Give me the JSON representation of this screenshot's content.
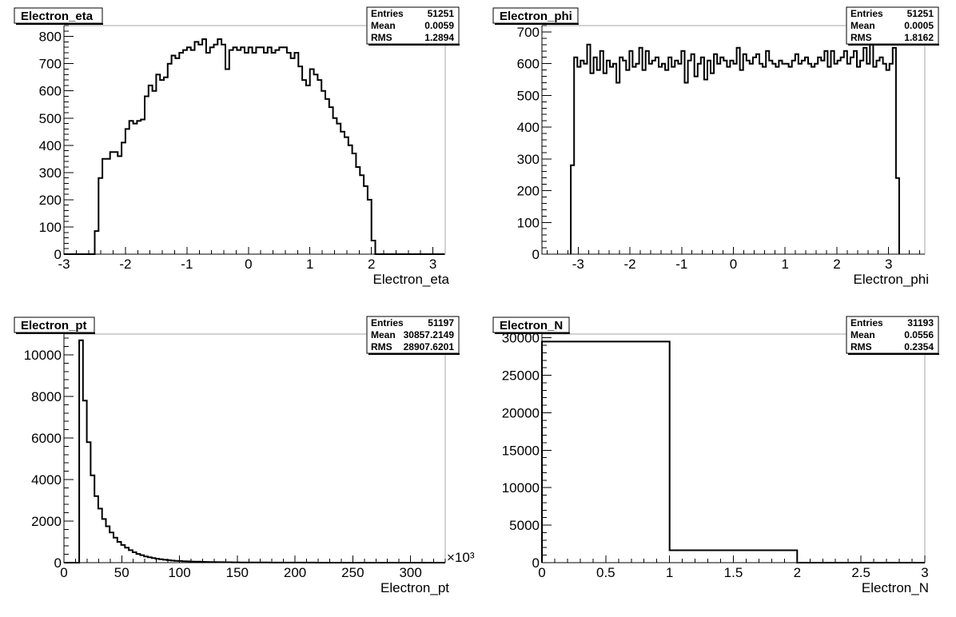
{
  "chart_data": [
    {
      "type": "histogram",
      "title": "Electron_eta",
      "xlabel": "Electron_eta",
      "ylabel": "",
      "xlim": [
        -3,
        3.2
      ],
      "ylim": [
        0,
        840
      ],
      "xticks": [
        -3,
        -2,
        -1,
        0,
        1,
        2,
        3
      ],
      "xtick_labels": [
        "-3",
        "-2",
        "-1",
        "0",
        "1",
        "2",
        "3"
      ],
      "yticks": [
        0,
        100,
        200,
        300,
        400,
        500,
        600,
        700,
        800
      ],
      "ytick_labels": [
        "0",
        "100",
        "200",
        "300",
        "400",
        "500",
        "600",
        "700",
        "800"
      ],
      "stats": {
        "Entries": "51251",
        "Mean": "0.0059",
        "RMS": "1.2894"
      },
      "bin_edges_start": -3,
      "bin_width": 0.0625,
      "values": [
        0,
        0,
        0,
        0,
        0,
        0,
        0,
        0,
        85,
        280,
        350,
        350,
        375,
        375,
        360,
        410,
        460,
        490,
        480,
        490,
        495,
        580,
        620,
        600,
        660,
        640,
        650,
        700,
        730,
        720,
        740,
        750,
        760,
        750,
        780,
        770,
        790,
        740,
        760,
        770,
        790,
        770,
        680,
        750,
        760,
        750,
        760,
        740,
        760,
        740,
        760,
        760,
        740,
        760,
        740,
        750,
        760,
        760,
        740,
        720,
        740,
        690,
        640,
        620,
        680,
        660,
        640,
        600,
        570,
        540,
        500,
        480,
        450,
        430,
        400,
        370,
        320,
        290,
        250,
        200,
        50,
        0,
        0,
        0,
        0,
        0,
        0,
        0,
        0,
        0,
        0,
        0,
        0,
        0,
        0,
        0,
        0,
        0,
        0
      ]
    },
    {
      "type": "histogram",
      "title": "Electron_phi",
      "xlabel": "Electron_phi",
      "ylabel": "",
      "xlim": [
        -3.7,
        3.7
      ],
      "ylim": [
        0,
        720
      ],
      "xticks": [
        -3,
        -2,
        -1,
        0,
        1,
        2,
        3
      ],
      "xtick_labels": [
        "-3",
        "-2",
        "-1",
        "0",
        "1",
        "2",
        "3"
      ],
      "yticks": [
        0,
        100,
        200,
        300,
        400,
        500,
        600,
        700
      ],
      "ytick_labels": [
        "0",
        "100",
        "200",
        "300",
        "400",
        "500",
        "600",
        "700"
      ],
      "stats": {
        "Entries": "51251",
        "Mean": "0.0005",
        "RMS": "1.8162"
      },
      "bin_edges_start": -3.1416,
      "bin_width": 0.062832,
      "values": [
        280,
        620,
        590,
        610,
        600,
        660,
        570,
        620,
        580,
        640,
        570,
        610,
        590,
        600,
        540,
        620,
        610,
        580,
        640,
        590,
        600,
        650,
        580,
        640,
        600,
        610,
        620,
        590,
        600,
        580,
        620,
        590,
        610,
        600,
        640,
        540,
        610,
        630,
        560,
        600,
        620,
        550,
        610,
        570,
        630,
        600,
        620,
        610,
        590,
        610,
        600,
        650,
        580,
        630,
        610,
        600,
        620,
        630,
        600,
        590,
        640,
        610,
        600,
        590,
        610,
        600,
        600,
        590,
        610,
        630,
        600,
        610,
        620,
        600,
        590,
        600,
        620,
        610,
        640,
        590,
        640,
        600,
        610,
        620,
        640,
        600,
        620,
        640,
        590,
        610,
        650,
        600,
        660,
        590,
        610,
        620,
        600,
        580,
        600,
        650,
        240
      ]
    },
    {
      "type": "histogram",
      "title": "Electron_pt",
      "xlabel": "Electron_pt",
      "ylabel": "",
      "xlim": [
        0,
        330
      ],
      "ylim": [
        0,
        11000
      ],
      "x_exponent": "×10³",
      "xticks": [
        0,
        50,
        100,
        150,
        200,
        250,
        300
      ],
      "xtick_labels": [
        "0",
        "50",
        "100",
        "150",
        "200",
        "250",
        "300"
      ],
      "yticks": [
        0,
        2000,
        4000,
        6000,
        8000,
        10000
      ],
      "ytick_labels": [
        "0",
        "2000",
        "4000",
        "6000",
        "8000",
        "10000"
      ],
      "stats": {
        "Entries": "51197",
        "Mean": "30857.2149",
        "RMS": "28907.6201"
      },
      "bin_edges_start": 0,
      "bin_width": 3.3,
      "values": [
        0,
        0,
        0,
        0,
        10700,
        7800,
        5800,
        4200,
        3200,
        2600,
        2100,
        1750,
        1450,
        1200,
        1000,
        850,
        720,
        600,
        500,
        420,
        360,
        300,
        260,
        220,
        190,
        160,
        140,
        120,
        100,
        90,
        80,
        70,
        60,
        55,
        50,
        45,
        40,
        35,
        30,
        28,
        25,
        22,
        20,
        18,
        16,
        14,
        12,
        11,
        10,
        9,
        8,
        7,
        6,
        6,
        5,
        5,
        4,
        4,
        3,
        3,
        3,
        2,
        2,
        2,
        2,
        2,
        1,
        1,
        1,
        1,
        1,
        1,
        1,
        1,
        1,
        0,
        0,
        0,
        0,
        0,
        0,
        0,
        0,
        0,
        0,
        0,
        0,
        0,
        0,
        0,
        0,
        0,
        0,
        0,
        0,
        0,
        0,
        0,
        0,
        0
      ]
    },
    {
      "type": "histogram",
      "title": "Electron_N",
      "xlabel": "Electron_N",
      "ylabel": "",
      "xlim": [
        0,
        3
      ],
      "ylim": [
        0,
        30500
      ],
      "xticks": [
        0,
        0.5,
        1,
        1.5,
        2,
        2.5,
        3
      ],
      "xtick_labels": [
        "0",
        "0.5",
        "1",
        "1.5",
        "2",
        "2.5",
        "3"
      ],
      "yticks": [
        0,
        5000,
        10000,
        15000,
        20000,
        25000,
        30000
      ],
      "ytick_labels": [
        "0",
        "5000",
        "10000",
        "15000",
        "20000",
        "25000",
        "30000"
      ],
      "stats": {
        "Entries": "31193",
        "Mean": "0.0556",
        "RMS": "0.2354"
      },
      "bin_edges_start": 0,
      "bin_width": 1,
      "values": [
        29500,
        1650,
        0
      ]
    }
  ]
}
